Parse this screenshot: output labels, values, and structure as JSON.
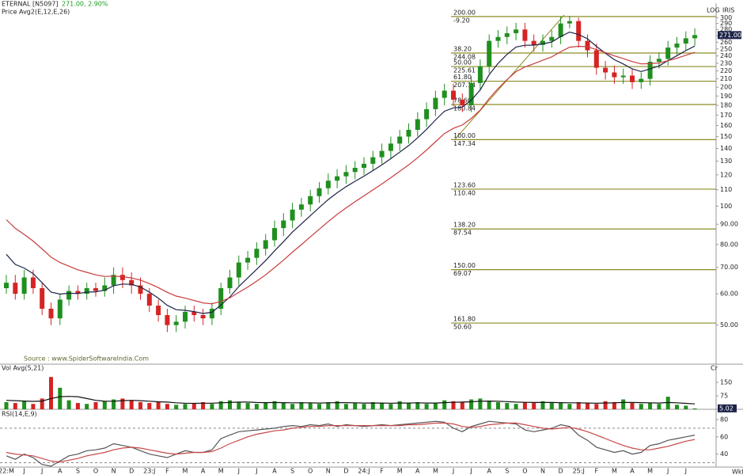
{
  "chart_data": [
    {
      "type": "candlestick",
      "title": "ETERNAL [N5097]",
      "subtitle": "271.00, 2.90%",
      "indicator_label": "Price Avg2(E,12,E,26)",
      "source": "Source : www.SpiderSoftwareIndia.Com",
      "scale_label": "LOG",
      "name_label": "IRIS",
      "period_label": "Wkl",
      "log_scale": true,
      "up_color": "#1f8f1f",
      "down_color": "#d42424",
      "categories": [
        "22:M",
        null,
        "J",
        null,
        "J",
        null,
        "A",
        null,
        "S",
        null,
        "O",
        null,
        "N",
        null,
        "D",
        null,
        "23:J",
        null,
        "F",
        null,
        "M",
        null,
        "A",
        null,
        "M",
        null,
        "J",
        null,
        "J",
        null,
        "A",
        null,
        "S",
        null,
        "O",
        null,
        "N",
        null,
        "D",
        null,
        "24:J",
        null,
        "F",
        null,
        "M",
        null,
        "A",
        null,
        "M",
        null,
        "J",
        null,
        "J",
        null,
        "A",
        null,
        "S",
        null,
        "O",
        null,
        "N",
        null,
        "D",
        null,
        "25:J",
        null,
        "F",
        null,
        "M",
        null,
        "A",
        null,
        "M",
        null,
        "J",
        null,
        "J",
        null
      ],
      "open": [
        62,
        64,
        60,
        66,
        62,
        55,
        52,
        58,
        61,
        60,
        62,
        61,
        63,
        67,
        65,
        63,
        60,
        56,
        53,
        50,
        51,
        54,
        53,
        52,
        55,
        62,
        66,
        72,
        74,
        78,
        82,
        88,
        92,
        98,
        101,
        106,
        111,
        116,
        119,
        122,
        125,
        128,
        133,
        138,
        144,
        150,
        156,
        166,
        176,
        188,
        196,
        186,
        180,
        205,
        226,
        262,
        268,
        274,
        280,
        262,
        256,
        262,
        268,
        290,
        294,
        262,
        248,
        224,
        218,
        212,
        214,
        206,
        210,
        232,
        236,
        252,
        258,
        266
      ],
      "high": [
        67,
        67,
        69,
        69,
        64,
        57,
        60,
        63,
        63,
        64,
        64,
        66,
        70,
        70,
        68,
        66,
        62,
        58,
        55,
        53,
        56,
        56,
        55,
        57,
        64,
        69,
        75,
        77,
        81,
        85,
        92,
        96,
        102,
        105,
        110,
        115,
        121,
        124,
        127,
        130,
        133,
        138,
        144,
        150,
        156,
        162,
        173,
        183,
        196,
        204,
        204,
        193,
        213,
        235,
        272,
        279,
        285,
        291,
        291,
        272,
        272,
        279,
        302,
        303,
        300,
        272,
        258,
        233,
        227,
        223,
        223,
        218,
        241,
        245,
        262,
        268,
        277,
        282
      ],
      "low": [
        60,
        58,
        58,
        60,
        53,
        50,
        50,
        56,
        58,
        58,
        59,
        59,
        60,
        62,
        60,
        58,
        54,
        51,
        48,
        48,
        49,
        51,
        50,
        50,
        53,
        60,
        63,
        69,
        71,
        75,
        79,
        84,
        88,
        94,
        97,
        102,
        107,
        111,
        114,
        117,
        120,
        123,
        128,
        132,
        138,
        144,
        150,
        159,
        169,
        180,
        179,
        173,
        173,
        197,
        217,
        252,
        257,
        263,
        252,
        246,
        246,
        252,
        257,
        282,
        252,
        238,
        215,
        209,
        204,
        204,
        198,
        198,
        202,
        223,
        227,
        242,
        248,
        255
      ],
      "close": [
        64,
        60,
        66,
        62,
        55,
        52,
        58,
        61,
        60,
        62,
        61,
        63,
        67,
        65,
        63,
        60,
        56,
        53,
        50,
        51,
        54,
        53,
        52,
        55,
        62,
        66,
        72,
        74,
        78,
        82,
        88,
        92,
        98,
        101,
        106,
        111,
        116,
        119,
        122,
        125,
        128,
        133,
        138,
        144,
        150,
        156,
        166,
        176,
        188,
        196,
        186,
        180,
        205,
        226,
        262,
        268,
        274,
        280,
        262,
        256,
        262,
        268,
        290,
        294,
        262,
        248,
        224,
        218,
        212,
        214,
        206,
        210,
        232,
        236,
        252,
        258,
        266,
        271
      ],
      "last_price_label": "271.00",
      "series": [
        {
          "color": "#1c2448",
          "values": [
            75.5,
            71.2,
            69.7,
            67.5,
            64.0,
            60.6,
            59.9,
            60.2,
            60.1,
            60.6,
            60.7,
            61.3,
            62.9,
            63.5,
            63.4,
            62.4,
            60.6,
            58.5,
            56.1,
            54.7,
            54.5,
            54.1,
            53.5,
            53.9,
            56.2,
            58.9,
            62.6,
            65.8,
            69.2,
            72.8,
            77.1,
            81.3,
            86.0,
            90.2,
            94.6,
            99.2,
            103.9,
            108.1,
            112.0,
            115.6,
            119.1,
            123.0,
            127.2,
            131.9,
            137.0,
            142.3,
            148.9,
            156.5,
            165.3,
            173.9,
            177.3,
            178.1,
            185.6,
            196.9,
            215.1,
            229.9,
            242.2,
            252.8,
            255.4,
            255.6,
            257.4,
            260.4,
            268.7,
            275.8,
            271.9,
            265.2,
            253.7,
            243.7,
            234.8,
            229.0,
            222.6,
            219.1,
            222.7,
            226.4,
            233.6,
            240.4,
            247.6,
            254.2
          ]
        },
        {
          "color": "#c83c3c",
          "values": [
            92.4,
            87.9,
            84.8,
            81.6,
            77.9,
            74.3,
            72.0,
            70.5,
            69.0,
            68.0,
            67.0,
            66.4,
            66.5,
            66.3,
            65.8,
            65.0,
            63.7,
            62.2,
            60.5,
            59.2,
            58.5,
            57.7,
            56.9,
            56.6,
            57.4,
            58.6,
            60.5,
            62.4,
            64.6,
            67.0,
            69.9,
            73.0,
            76.5,
            79.9,
            83.6,
            87.4,
            91.4,
            95.3,
            99.0,
            102.6,
            106.2,
            109.9,
            113.8,
            118.0,
            122.5,
            127.2,
            132.6,
            138.7,
            145.6,
            152.7,
            157.4,
            160.5,
            166.7,
            175.0,
            187.2,
            198.5,
            209.1,
            219.0,
            225.0,
            229.4,
            234.0,
            238.7,
            245.9,
            252.6,
            253.9,
            253.1,
            249.0,
            244.7,
            240.1,
            236.4,
            232.2,
            229.1,
            229.5,
            230.4,
            233.4,
            236.8,
            240.9,
            245.1
          ]
        }
      ],
      "fib_color": "#8c8c24",
      "fibonacci": [
        {
          "ratio": "200.00",
          "value": 302,
          "label": "-9.20"
        },
        {
          "ratio": "38.20",
          "value": 244.08,
          "label": "244.08"
        },
        {
          "ratio": "50.00",
          "value": 225.61,
          "label": "225.61"
        },
        {
          "ratio": "61.80",
          "value": 207.14,
          "label": "207.14"
        },
        {
          "ratio": "78.60",
          "value": 180.84,
          "label": "180.84"
        },
        {
          "ratio": "100.00",
          "value": 147.34,
          "label": "147.34"
        },
        {
          "ratio": "123.60",
          "value": 110.4,
          "label": "110.40"
        },
        {
          "ratio": "138.20",
          "value": 87.54,
          "label": "87.54"
        },
        {
          "ratio": "150.00",
          "value": 69.07,
          "label": "69.07"
        },
        {
          "ratio": "161.80",
          "value": 50.6,
          "label": "50.60"
        }
      ],
      "ylim": [
        40,
        306
      ],
      "yticks": [
        300,
        290,
        280,
        270,
        260,
        250,
        240,
        230,
        220,
        210,
        200,
        190,
        180,
        170,
        160,
        150,
        140,
        130,
        120,
        110,
        100,
        {
          "value": 90,
          "label": "90.00"
        },
        {
          "value": 80,
          "label": "80.00"
        },
        {
          "value": 70,
          "label": "70.00"
        },
        {
          "value": 60,
          "label": "60.00"
        },
        {
          "value": 50,
          "label": "50.00"
        }
      ]
    },
    {
      "type": "bar",
      "title": "Vol Avg(5,21)",
      "unit_label": "Cr",
      "values": [
        40,
        35,
        45,
        30,
        60,
        180,
        120,
        50,
        35,
        30,
        40,
        45,
        55,
        60,
        50,
        40,
        35,
        40,
        30,
        25,
        30,
        35,
        40,
        30,
        45,
        50,
        40,
        35,
        30,
        40,
        45,
        35,
        30,
        40,
        35,
        30,
        40,
        45,
        30,
        35,
        30,
        40,
        35,
        30,
        45,
        35,
        40,
        30,
        35,
        50,
        45,
        40,
        55,
        60,
        45,
        40,
        35,
        30,
        40,
        35,
        45,
        40,
        35,
        30,
        40,
        35,
        30,
        45,
        40,
        55,
        35,
        30,
        35,
        30,
        70,
        25,
        20,
        5.02
      ],
      "series": [
        {
          "color": "#111111",
          "values": [
            50,
            48,
            46,
            44,
            46,
            60,
            70,
            72,
            70,
            60,
            50,
            45,
            45,
            48,
            50,
            48,
            45,
            42,
            40,
            36,
            34,
            33,
            34,
            34,
            36,
            38,
            40,
            40,
            38,
            37,
            38,
            37,
            36,
            36,
            36,
            35,
            36,
            37,
            37,
            36,
            35,
            35,
            35,
            34,
            35,
            35,
            36,
            35,
            35,
            37,
            39,
            40,
            42,
            45,
            46,
            45,
            43,
            40,
            39,
            38,
            38,
            38,
            37,
            36,
            36,
            35,
            34,
            35,
            36,
            38,
            38,
            37,
            36,
            35,
            38,
            36,
            33,
            30
          ]
        }
      ],
      "ylim": [
        0,
        247
      ],
      "yticks": [
        150,
        75
      ]
    },
    {
      "type": "line",
      "title": "RSI(14,E,9)",
      "series": [
        {
          "color": "#555555",
          "values": [
            38,
            34,
            40,
            36,
            28,
            26,
            32,
            38,
            40,
            44,
            45,
            47,
            52,
            50,
            48,
            44,
            40,
            38,
            36,
            40,
            44,
            42,
            42,
            45,
            58,
            62,
            66,
            67,
            68,
            69,
            70,
            72,
            73,
            72,
            74,
            73,
            75,
            72,
            74,
            73,
            72,
            73,
            74,
            73,
            74,
            75,
            76,
            77,
            78,
            77,
            70,
            66,
            72,
            75,
            78,
            77,
            76,
            75,
            68,
            66,
            68,
            70,
            74,
            72,
            62,
            56,
            48,
            45,
            42,
            44,
            40,
            42,
            50,
            52,
            56,
            58,
            60,
            62
          ]
        },
        {
          "color": "#c84848",
          "values": [
            42,
            40,
            39,
            38,
            35,
            32,
            31,
            33,
            35,
            38,
            40,
            42,
            45,
            47,
            48,
            47,
            45,
            43,
            41,
            40,
            41,
            42,
            42,
            43,
            47,
            52,
            56,
            60,
            63,
            65,
            67,
            68,
            70,
            71,
            72,
            72,
            73,
            73,
            73,
            73,
            73,
            73,
            73,
            73,
            73,
            74,
            74,
            75,
            76,
            76,
            75,
            72,
            71,
            72,
            74,
            75,
            76,
            76,
            74,
            72,
            70,
            69,
            70,
            71,
            69,
            66,
            62,
            58,
            54,
            50,
            47,
            45,
            45,
            47,
            49,
            52,
            55,
            57
          ]
        }
      ],
      "levels": [
        70,
        30
      ],
      "ylim": [
        25,
        91
      ],
      "yticks": [
        80,
        60,
        40
      ]
    }
  ]
}
